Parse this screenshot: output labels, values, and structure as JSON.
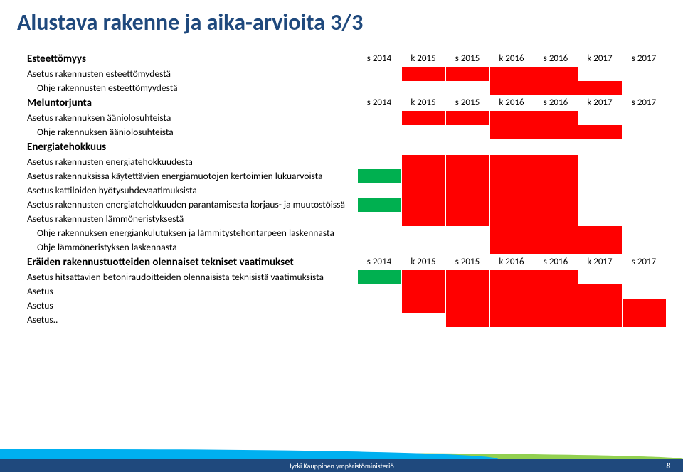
{
  "title": "Alustava rakenne ja aika-arvioita 3/3",
  "periods": [
    "s 2014",
    "k 2015",
    "s 2015",
    "k 2016",
    "s 2016",
    "k 2017",
    "s 2017"
  ],
  "colors": {
    "red": "#ff0000",
    "green": "#00b050"
  },
  "sections": [
    {
      "header": "Esteettömyys",
      "show_periods": true,
      "rows": [
        {
          "label": "Asetus rakennusten esteettömydestä",
          "indent": 1,
          "cells": [
            "",
            "red",
            "red",
            "red",
            "red",
            "",
            ""
          ]
        },
        {
          "label": "Ohje rakennusten esteettömyydestä",
          "indent": 2,
          "cells": [
            "",
            "",
            "",
            "red",
            "red",
            "red",
            ""
          ]
        }
      ]
    },
    {
      "header": "Meluntorjunta",
      "show_periods": true,
      "rows": [
        {
          "label": "Asetus rakennuksen ääniolosuhteista",
          "indent": 1,
          "cells": [
            "",
            "red",
            "red",
            "red",
            "red",
            "",
            ""
          ]
        },
        {
          "label": "Ohje rakennuksen ääniolosuhteista",
          "indent": 2,
          "cells": [
            "",
            "",
            "",
            "red",
            "red",
            "red",
            ""
          ]
        }
      ]
    },
    {
      "header": "Energiatehokkuus",
      "show_periods": false,
      "rows": [
        {
          "label": "Asetus rakennusten energiatehokkuudesta",
          "indent": 1,
          "cells": [
            "",
            "red",
            "red",
            "red",
            "red",
            "",
            ""
          ]
        },
        {
          "label": "Asetus rakennuksissa käytettävien energiamuotojen kertoimien lukuarvoista",
          "indent": 1,
          "cells": [
            "green",
            "red",
            "red",
            "red",
            "red",
            "",
            ""
          ]
        },
        {
          "label": "Asetus kattiloiden hyötysuhdevaatimuksista",
          "indent": 1,
          "cells": [
            "",
            "red",
            "red",
            "red",
            "red",
            "",
            ""
          ]
        },
        {
          "label": "Asetus rakennusten energiatehokkuuden parantamisesta korjaus- ja muutostöissä",
          "indent": 1,
          "cells": [
            "green",
            "red",
            "red",
            "red",
            "red",
            "",
            ""
          ]
        },
        {
          "label": "Asetus rakennusten lämmöneristyksestä",
          "indent": 1,
          "cells": [
            "",
            "red",
            "red",
            "red",
            "red",
            "",
            ""
          ]
        },
        {
          "label": "Ohje rakennuksen energiankulutuksen ja lämmitystehontarpeen laskennasta",
          "indent": 2,
          "cells": [
            "",
            "",
            "",
            "red",
            "red",
            "red",
            ""
          ]
        },
        {
          "label": "Ohje lämmöneristyksen laskennasta",
          "indent": 2,
          "cells": [
            "",
            "",
            "",
            "red",
            "red",
            "red",
            ""
          ]
        }
      ]
    },
    {
      "header": "Eräiden rakennustuotteiden olennaiset tekniset vaatimukset",
      "show_periods": true,
      "rows": [
        {
          "label": "Asetus hitsattavien betoniraudoitteiden olennaisista teknisistä vaatimuksista",
          "indent": 1,
          "cells": [
            "green",
            "red",
            "red",
            "red",
            "red",
            "",
            ""
          ]
        },
        {
          "label": "Asetus",
          "indent": 1,
          "cells": [
            "",
            "red",
            "red",
            "red",
            "red",
            "red",
            ""
          ]
        },
        {
          "label": "Asetus",
          "indent": 1,
          "cells": [
            "",
            "red",
            "red",
            "red",
            "red",
            "red",
            "red"
          ]
        },
        {
          "label": "Asetus..",
          "indent": 1,
          "cells": [
            "",
            "",
            "red",
            "red",
            "red",
            "red",
            "red"
          ]
        }
      ]
    }
  ],
  "footer": {
    "text": "Jyrki Kauppinen ympäristöministeriö",
    "page": "8"
  }
}
